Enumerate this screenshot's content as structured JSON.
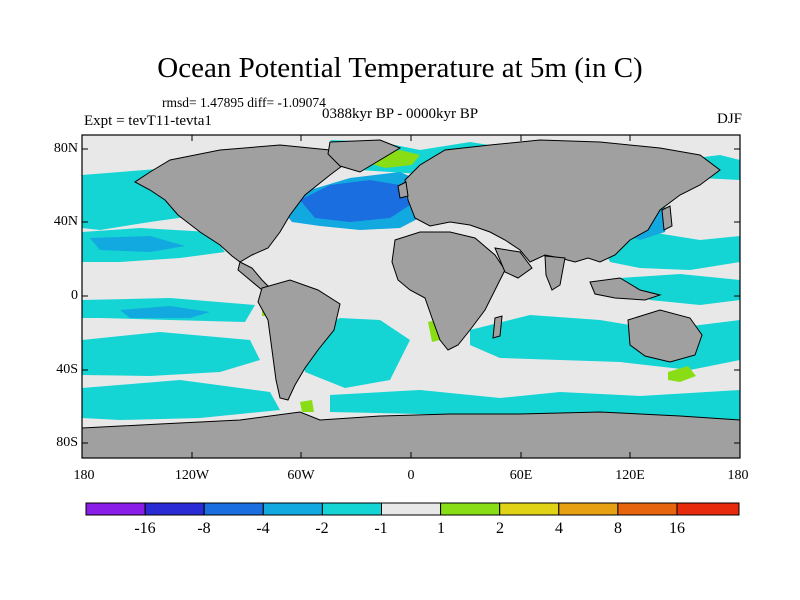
{
  "title": "Ocean Potential Temperature at 5m (in C)",
  "stats": "rmsd= 1.47895  diff= -1.09074",
  "period": "0388kyr BP - 0000kyr BP",
  "experiment": "Expt = tevT11-tevta1",
  "season": "DJF",
  "lat_ticks": [
    "80N",
    "40N",
    "0",
    "40S",
    "80S"
  ],
  "lon_ticks": [
    "180",
    "120W",
    "60W",
    "0",
    "60E",
    "120E",
    "180"
  ],
  "colorbar": {
    "colors": [
      "#8a1ee8",
      "#2b2bd6",
      "#1a6ee0",
      "#12a8e0",
      "#14d4d4",
      "#e8e8e8",
      "#88dd14",
      "#e0d214",
      "#e6a012",
      "#e6640c",
      "#e82a0c"
    ],
    "labels": [
      "-16",
      "-8",
      "-4",
      "-2",
      "-1",
      "1",
      "2",
      "4",
      "8",
      "16"
    ]
  },
  "land_color": "#a0a0a0",
  "ocean_neutral_color": "#e8e8e8"
}
